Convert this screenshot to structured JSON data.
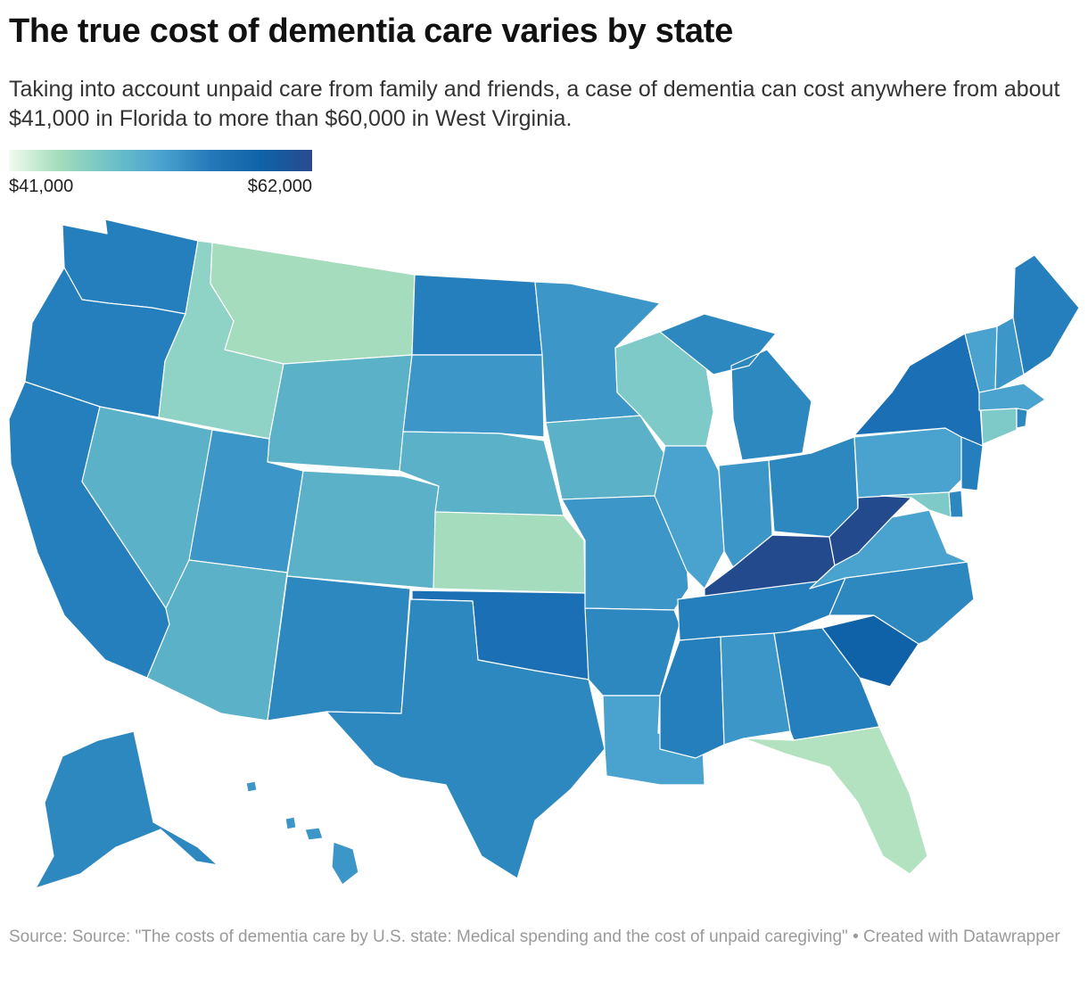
{
  "header": {
    "title": "The true cost of dementia care varies by state",
    "subtitle": "Taking into account unpaid care from family and friends, a case of dementia can cost anywhere from about $41,000 in Florida to more than $60,000 in West Virginia."
  },
  "legend": {
    "min_label": "$41,000",
    "max_label": "$62,000",
    "gradient_colors": [
      "#f2fbee",
      "#a3dcbc",
      "#6fc2c6",
      "#4aa3cf",
      "#2479b8",
      "#0f62a8",
      "#2a4a8c"
    ]
  },
  "colors": {
    "level_1": "#b3e2c0",
    "level_2": "#a6dcbe",
    "level_3": "#8fd2c6",
    "level_4": "#7dcac8",
    "level_5": "#5ab1c8",
    "level_6": "#4aa3cf",
    "level_7": "#3d96c8",
    "level_8": "#2d88c0",
    "level_9": "#257fbc",
    "level_10": "#1a6fb5",
    "level_11": "#0f62a8",
    "level_12": "#244a8e"
  },
  "footer": {
    "source": "Source: Source: \"The costs of dementia care by U.S. state: Medical spending and the cost of unpaid caregiving\" • Created with Datawrapper"
  }
}
